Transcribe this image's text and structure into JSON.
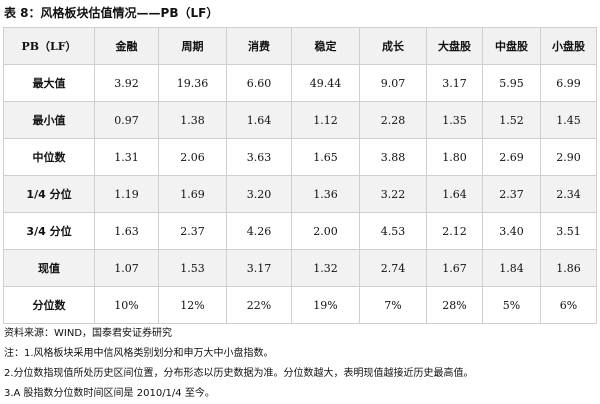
{
  "title": "表 8：风格板块估值情况——PB（LF）",
  "table": {
    "headers": [
      "PB（LF）",
      "金融",
      "周期",
      "消费",
      "稳定",
      "成长",
      "大盘股",
      "中盘股",
      "小盘股"
    ],
    "rows": [
      {
        "label": "最大值",
        "values": [
          "3.92",
          "19.36",
          "6.60",
          "49.44",
          "9.07",
          "3.17",
          "5.95",
          "6.99"
        ]
      },
      {
        "label": "最小值",
        "values": [
          "0.97",
          "1.38",
          "1.64",
          "1.12",
          "2.28",
          "1.35",
          "1.52",
          "1.45"
        ]
      },
      {
        "label": "中位数",
        "values": [
          "1.31",
          "2.06",
          "3.63",
          "1.65",
          "3.88",
          "1.80",
          "2.69",
          "2.90"
        ]
      },
      {
        "label": "1/4 分位",
        "values": [
          "1.19",
          "1.69",
          "3.20",
          "1.36",
          "3.22",
          "1.64",
          "2.37",
          "2.34"
        ]
      },
      {
        "label": "3/4 分位",
        "values": [
          "1.63",
          "2.37",
          "4.26",
          "2.00",
          "4.53",
          "2.12",
          "3.40",
          "3.51"
        ]
      },
      {
        "label": "现值",
        "values": [
          "1.07",
          "1.53",
          "3.17",
          "1.32",
          "2.74",
          "1.67",
          "1.84",
          "1.86"
        ]
      },
      {
        "label": "分位数",
        "values": [
          "10%",
          "12%",
          "22%",
          "19%",
          "7%",
          "28%",
          "5%",
          "6%"
        ]
      }
    ]
  },
  "notes": [
    "资料来源：WIND，国泰君安证券研究",
    "注：1.风格板块采用中信风格类别划分和申万大中小盘指数。",
    "2.分位数指现值所处历史区间位置，分布形态以历史数据为准。分位数越大，表明现值越接近历史最高值。",
    "3.A 股指数分位数时间区间是 2010/1/4 至今。"
  ]
}
